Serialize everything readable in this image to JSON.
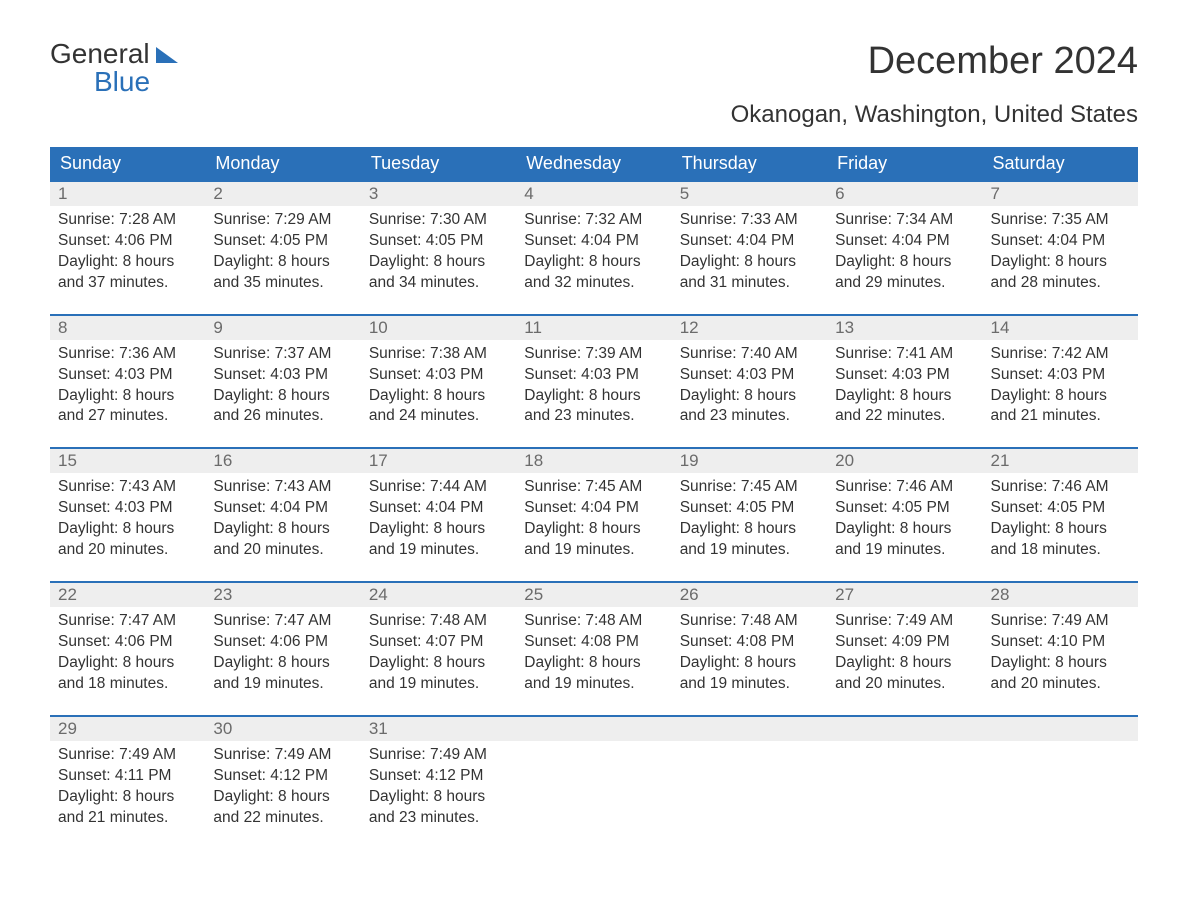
{
  "brand": {
    "line1": "General",
    "line2": "Blue"
  },
  "title": "December 2024",
  "location": "Okanogan, Washington, United States",
  "colors": {
    "primary": "#2a70b8",
    "header_text": "#ffffff",
    "daynum_bg": "#eeeeee",
    "daynum_text": "#6b6b6b",
    "body_text": "#333333",
    "background": "#ffffff"
  },
  "calendar": {
    "day_labels": [
      "Sunday",
      "Monday",
      "Tuesday",
      "Wednesday",
      "Thursday",
      "Friday",
      "Saturday"
    ],
    "label_fontsize": 18,
    "cell_fontsize": 15.5,
    "weeks": [
      {
        "days": [
          {
            "num": "1",
            "sunrise": "Sunrise: 7:28 AM",
            "sunset": "Sunset: 4:06 PM",
            "dl1": "Daylight: 8 hours",
            "dl2": "and 37 minutes."
          },
          {
            "num": "2",
            "sunrise": "Sunrise: 7:29 AM",
            "sunset": "Sunset: 4:05 PM",
            "dl1": "Daylight: 8 hours",
            "dl2": "and 35 minutes."
          },
          {
            "num": "3",
            "sunrise": "Sunrise: 7:30 AM",
            "sunset": "Sunset: 4:05 PM",
            "dl1": "Daylight: 8 hours",
            "dl2": "and 34 minutes."
          },
          {
            "num": "4",
            "sunrise": "Sunrise: 7:32 AM",
            "sunset": "Sunset: 4:04 PM",
            "dl1": "Daylight: 8 hours",
            "dl2": "and 32 minutes."
          },
          {
            "num": "5",
            "sunrise": "Sunrise: 7:33 AM",
            "sunset": "Sunset: 4:04 PM",
            "dl1": "Daylight: 8 hours",
            "dl2": "and 31 minutes."
          },
          {
            "num": "6",
            "sunrise": "Sunrise: 7:34 AM",
            "sunset": "Sunset: 4:04 PM",
            "dl1": "Daylight: 8 hours",
            "dl2": "and 29 minutes."
          },
          {
            "num": "7",
            "sunrise": "Sunrise: 7:35 AM",
            "sunset": "Sunset: 4:04 PM",
            "dl1": "Daylight: 8 hours",
            "dl2": "and 28 minutes."
          }
        ]
      },
      {
        "days": [
          {
            "num": "8",
            "sunrise": "Sunrise: 7:36 AM",
            "sunset": "Sunset: 4:03 PM",
            "dl1": "Daylight: 8 hours",
            "dl2": "and 27 minutes."
          },
          {
            "num": "9",
            "sunrise": "Sunrise: 7:37 AM",
            "sunset": "Sunset: 4:03 PM",
            "dl1": "Daylight: 8 hours",
            "dl2": "and 26 minutes."
          },
          {
            "num": "10",
            "sunrise": "Sunrise: 7:38 AM",
            "sunset": "Sunset: 4:03 PM",
            "dl1": "Daylight: 8 hours",
            "dl2": "and 24 minutes."
          },
          {
            "num": "11",
            "sunrise": "Sunrise: 7:39 AM",
            "sunset": "Sunset: 4:03 PM",
            "dl1": "Daylight: 8 hours",
            "dl2": "and 23 minutes."
          },
          {
            "num": "12",
            "sunrise": "Sunrise: 7:40 AM",
            "sunset": "Sunset: 4:03 PM",
            "dl1": "Daylight: 8 hours",
            "dl2": "and 23 minutes."
          },
          {
            "num": "13",
            "sunrise": "Sunrise: 7:41 AM",
            "sunset": "Sunset: 4:03 PM",
            "dl1": "Daylight: 8 hours",
            "dl2": "and 22 minutes."
          },
          {
            "num": "14",
            "sunrise": "Sunrise: 7:42 AM",
            "sunset": "Sunset: 4:03 PM",
            "dl1": "Daylight: 8 hours",
            "dl2": "and 21 minutes."
          }
        ]
      },
      {
        "days": [
          {
            "num": "15",
            "sunrise": "Sunrise: 7:43 AM",
            "sunset": "Sunset: 4:03 PM",
            "dl1": "Daylight: 8 hours",
            "dl2": "and 20 minutes."
          },
          {
            "num": "16",
            "sunrise": "Sunrise: 7:43 AM",
            "sunset": "Sunset: 4:04 PM",
            "dl1": "Daylight: 8 hours",
            "dl2": "and 20 minutes."
          },
          {
            "num": "17",
            "sunrise": "Sunrise: 7:44 AM",
            "sunset": "Sunset: 4:04 PM",
            "dl1": "Daylight: 8 hours",
            "dl2": "and 19 minutes."
          },
          {
            "num": "18",
            "sunrise": "Sunrise: 7:45 AM",
            "sunset": "Sunset: 4:04 PM",
            "dl1": "Daylight: 8 hours",
            "dl2": "and 19 minutes."
          },
          {
            "num": "19",
            "sunrise": "Sunrise: 7:45 AM",
            "sunset": "Sunset: 4:05 PM",
            "dl1": "Daylight: 8 hours",
            "dl2": "and 19 minutes."
          },
          {
            "num": "20",
            "sunrise": "Sunrise: 7:46 AM",
            "sunset": "Sunset: 4:05 PM",
            "dl1": "Daylight: 8 hours",
            "dl2": "and 19 minutes."
          },
          {
            "num": "21",
            "sunrise": "Sunrise: 7:46 AM",
            "sunset": "Sunset: 4:05 PM",
            "dl1": "Daylight: 8 hours",
            "dl2": "and 18 minutes."
          }
        ]
      },
      {
        "days": [
          {
            "num": "22",
            "sunrise": "Sunrise: 7:47 AM",
            "sunset": "Sunset: 4:06 PM",
            "dl1": "Daylight: 8 hours",
            "dl2": "and 18 minutes."
          },
          {
            "num": "23",
            "sunrise": "Sunrise: 7:47 AM",
            "sunset": "Sunset: 4:06 PM",
            "dl1": "Daylight: 8 hours",
            "dl2": "and 19 minutes."
          },
          {
            "num": "24",
            "sunrise": "Sunrise: 7:48 AM",
            "sunset": "Sunset: 4:07 PM",
            "dl1": "Daylight: 8 hours",
            "dl2": "and 19 minutes."
          },
          {
            "num": "25",
            "sunrise": "Sunrise: 7:48 AM",
            "sunset": "Sunset: 4:08 PM",
            "dl1": "Daylight: 8 hours",
            "dl2": "and 19 minutes."
          },
          {
            "num": "26",
            "sunrise": "Sunrise: 7:48 AM",
            "sunset": "Sunset: 4:08 PM",
            "dl1": "Daylight: 8 hours",
            "dl2": "and 19 minutes."
          },
          {
            "num": "27",
            "sunrise": "Sunrise: 7:49 AM",
            "sunset": "Sunset: 4:09 PM",
            "dl1": "Daylight: 8 hours",
            "dl2": "and 20 minutes."
          },
          {
            "num": "28",
            "sunrise": "Sunrise: 7:49 AM",
            "sunset": "Sunset: 4:10 PM",
            "dl1": "Daylight: 8 hours",
            "dl2": "and 20 minutes."
          }
        ]
      },
      {
        "days": [
          {
            "num": "29",
            "sunrise": "Sunrise: 7:49 AM",
            "sunset": "Sunset: 4:11 PM",
            "dl1": "Daylight: 8 hours",
            "dl2": "and 21 minutes."
          },
          {
            "num": "30",
            "sunrise": "Sunrise: 7:49 AM",
            "sunset": "Sunset: 4:12 PM",
            "dl1": "Daylight: 8 hours",
            "dl2": "and 22 minutes."
          },
          {
            "num": "31",
            "sunrise": "Sunrise: 7:49 AM",
            "sunset": "Sunset: 4:12 PM",
            "dl1": "Daylight: 8 hours",
            "dl2": "and 23 minutes."
          },
          {
            "num": "",
            "sunrise": "",
            "sunset": "",
            "dl1": "",
            "dl2": ""
          },
          {
            "num": "",
            "sunrise": "",
            "sunset": "",
            "dl1": "",
            "dl2": ""
          },
          {
            "num": "",
            "sunrise": "",
            "sunset": "",
            "dl1": "",
            "dl2": ""
          },
          {
            "num": "",
            "sunrise": "",
            "sunset": "",
            "dl1": "",
            "dl2": ""
          }
        ]
      }
    ]
  }
}
